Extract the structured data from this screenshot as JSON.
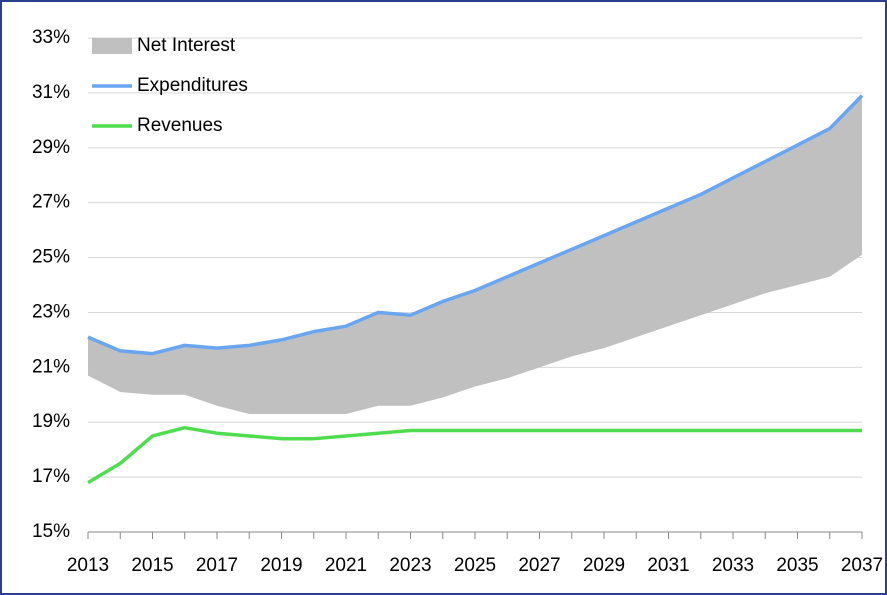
{
  "chart_data": {
    "type": "area_line",
    "x": [
      2013,
      2014,
      2015,
      2016,
      2017,
      2018,
      2019,
      2020,
      2021,
      2022,
      2023,
      2024,
      2025,
      2026,
      2027,
      2028,
      2029,
      2030,
      2031,
      2032,
      2033,
      2034,
      2035,
      2036,
      2037
    ],
    "series": [
      {
        "name": "Net Interest",
        "color": "#c0c0c0",
        "kind": "band",
        "base": "Expenditures",
        "values": [
          1.4,
          1.5,
          1.5,
          1.8,
          2.1,
          2.5,
          2.7,
          3.0,
          3.2,
          3.4,
          3.3,
          3.5,
          3.5,
          3.7,
          3.8,
          3.9,
          4.1,
          4.2,
          4.3,
          4.4,
          4.6,
          4.8,
          5.1,
          5.4,
          5.8
        ]
      },
      {
        "name": "Expenditures",
        "color": "#6aa5f0",
        "kind": "line",
        "values": [
          22.1,
          21.6,
          21.5,
          21.8,
          21.7,
          21.8,
          22.0,
          22.3,
          22.5,
          23.0,
          22.9,
          23.4,
          23.8,
          24.3,
          24.8,
          25.3,
          25.8,
          26.3,
          26.8,
          27.3,
          27.9,
          28.5,
          29.1,
          29.7,
          30.9
        ]
      },
      {
        "name": "Revenues",
        "color": "#4fdd4f",
        "kind": "line",
        "values": [
          16.8,
          17.5,
          18.5,
          18.8,
          18.6,
          18.5,
          18.4,
          18.4,
          18.5,
          18.6,
          18.7,
          18.7,
          18.7,
          18.7,
          18.7,
          18.7,
          18.7,
          18.7,
          18.7,
          18.7,
          18.7,
          18.7,
          18.7,
          18.7,
          18.7
        ]
      }
    ],
    "xlim": [
      2013,
      2037
    ],
    "xticks": [
      2013,
      2015,
      2017,
      2019,
      2021,
      2023,
      2025,
      2027,
      2029,
      2031,
      2033,
      2035,
      2037
    ],
    "ylim": [
      15,
      33
    ],
    "yticks": [
      {
        "value": 15,
        "label": "15%"
      },
      {
        "value": 17,
        "label": "17%"
      },
      {
        "value": 19,
        "label": "19%"
      },
      {
        "value": 21,
        "label": "21%"
      },
      {
        "value": 23,
        "label": "23%"
      },
      {
        "value": 25,
        "label": "25%"
      },
      {
        "value": 27,
        "label": "27%"
      },
      {
        "value": 29,
        "label": "29%"
      },
      {
        "value": 31,
        "label": "31%"
      },
      {
        "value": 33,
        "label": "33%"
      }
    ],
    "grid": true,
    "legend": "upper-left"
  }
}
